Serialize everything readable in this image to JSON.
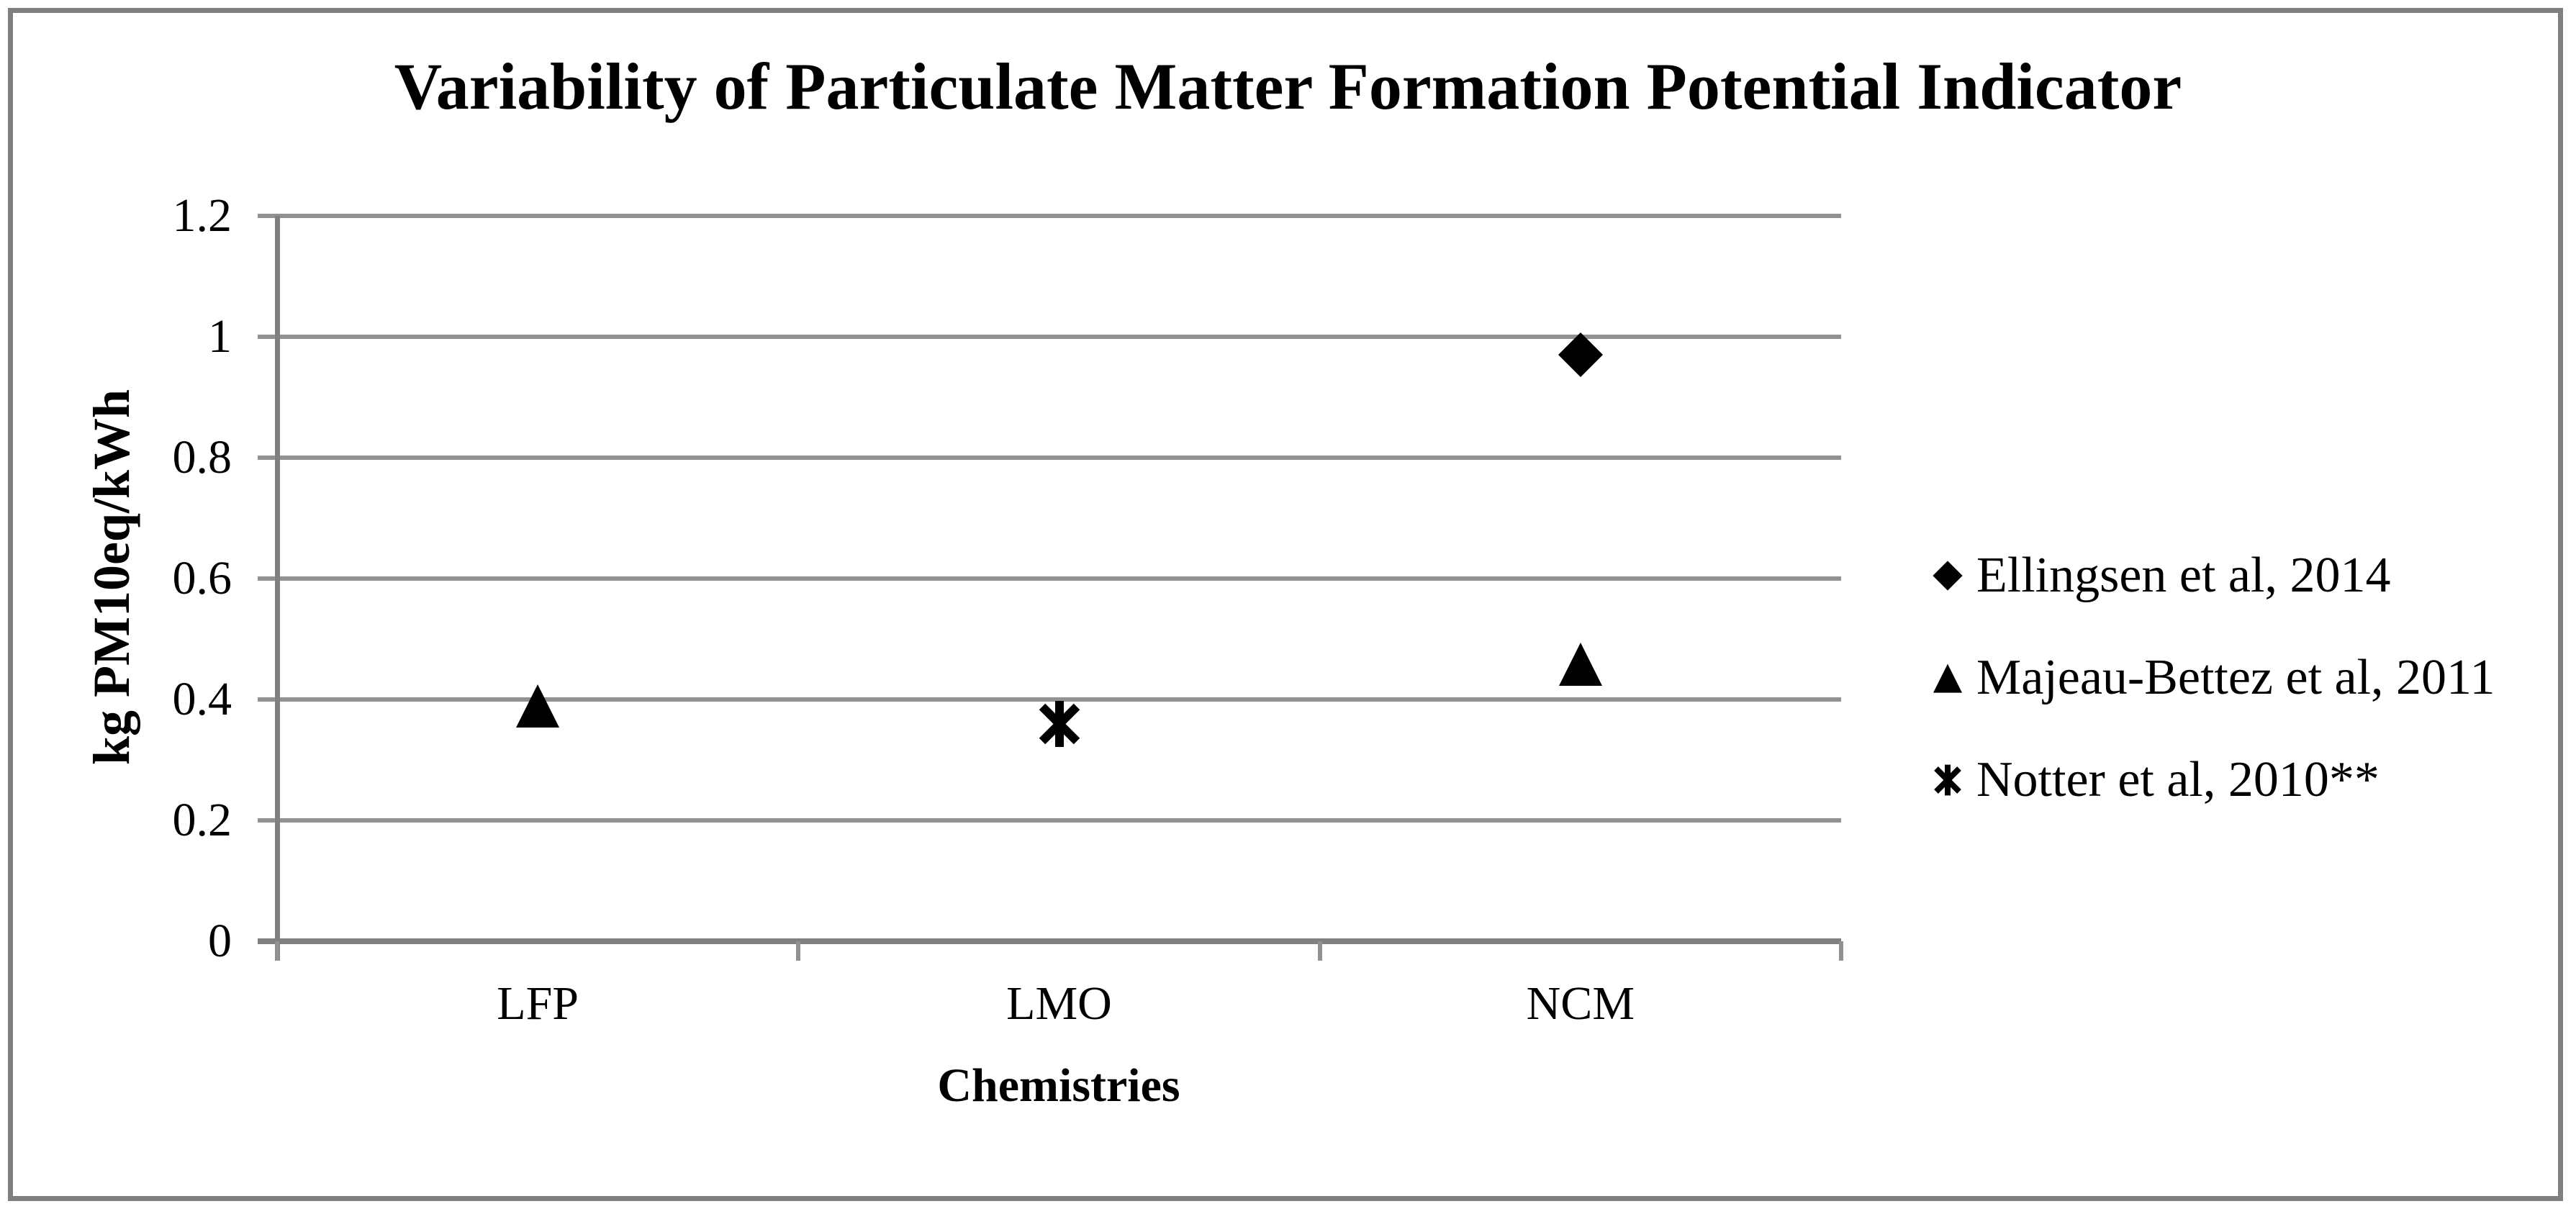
{
  "chart_data": {
    "type": "scatter",
    "title": "Variability of Particulate Matter Formation Potential Indicator",
    "xlabel": "Chemistries",
    "ylabel": "kg PM10eq/kWh",
    "categories": [
      "LFP",
      "LMO",
      "NCM"
    ],
    "ylim": [
      0,
      1.2
    ],
    "ytick_step": 0.2,
    "ytick_labels": [
      "0",
      "0.2",
      "0.4",
      "0.6",
      "0.8",
      "1",
      "1.2"
    ],
    "grid": "horizontal-only",
    "legend_position": "right",
    "series": [
      {
        "name": "Ellingsen et al, 2014",
        "marker": "diamond",
        "points": [
          {
            "category": "NCM",
            "value": 0.97
          }
        ]
      },
      {
        "name": "Majeau-Bettez et al, 2011",
        "marker": "triangle",
        "points": [
          {
            "category": "LFP",
            "value": 0.39
          },
          {
            "category": "NCM",
            "value": 0.46
          }
        ]
      },
      {
        "name": "Notter et al, 2010**",
        "marker": "star",
        "points": [
          {
            "category": "LMO",
            "value": 0.36
          }
        ]
      }
    ]
  },
  "colors": {
    "marker": "#000000",
    "gridline": "#919191",
    "axis": "#808080",
    "frame_border": "#808080",
    "background": "#FFFFFF",
    "text": "#000000"
  }
}
